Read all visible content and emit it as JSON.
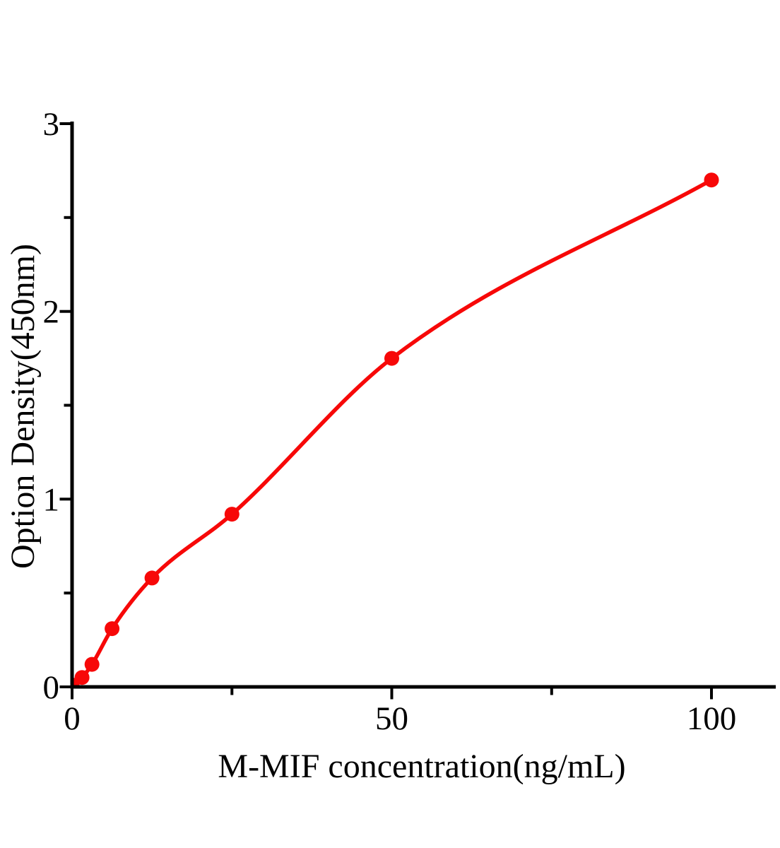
{
  "chart_data": {
    "type": "scatter",
    "title": "",
    "xlabel": "M-MIF concentration(ng/mL)",
    "ylabel": "Option Density(450nm)",
    "x": [
      0,
      1.56,
      3.12,
      6.25,
      12.5,
      25,
      50,
      100
    ],
    "y": [
      0.01,
      0.05,
      0.12,
      0.31,
      0.58,
      0.92,
      1.75,
      2.7
    ],
    "x_ticks_major": [
      0,
      50,
      100
    ],
    "x_ticks_minor": [
      25,
      75
    ],
    "y_ticks_major": [
      0,
      1,
      2,
      3
    ],
    "y_ticks_minor": [
      0.5,
      1.5,
      2.5
    ],
    "xlim": [
      0,
      110
    ],
    "ylim": [
      0,
      3
    ],
    "grid": false,
    "legend": "none",
    "line_style": "smooth-fit-curve",
    "marker": "filled-circle",
    "colors": {
      "curve": "#f70808",
      "marker": "#f70808",
      "axis": "#000000",
      "background": "#ffffff"
    }
  }
}
